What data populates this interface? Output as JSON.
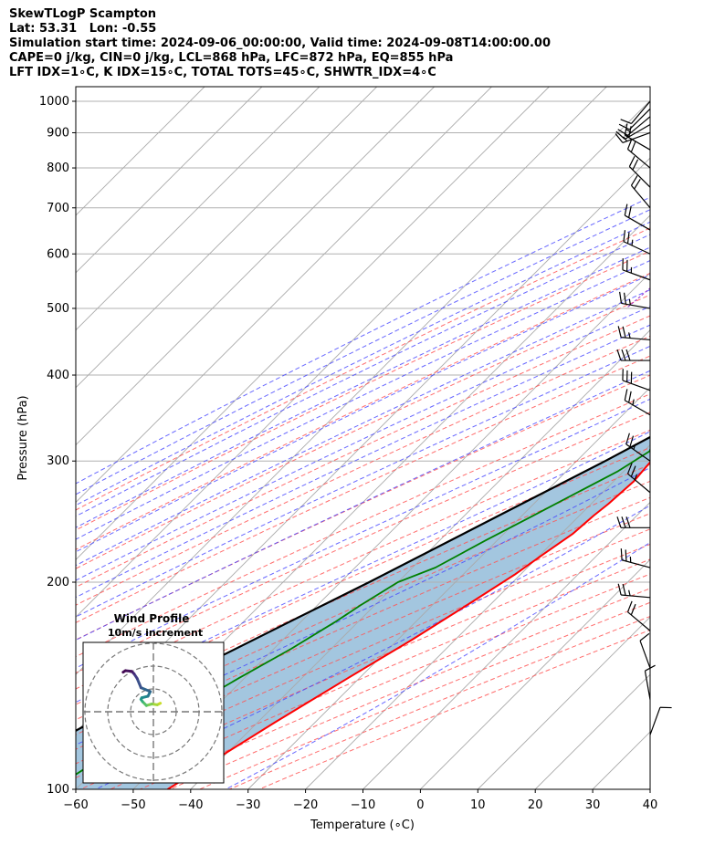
{
  "header": {
    "line1": "SkewTLogP Scampton",
    "line2": "Lat: 53.31   Lon: -0.55",
    "line3": "Simulation start time: 2024-09-06_00:00:00, Valid time: 2024-09-08T14:00:00.00",
    "line4": "CAPE=0 j/kg, CIN=0 j/kg, LCL=868 hPa, LFC=872 hPa, EQ=855 hPa",
    "line5": "LFT IDX=1∘C, K IDX=15∘C, TOTAL TOTS=45∘C, SHWTR_IDX=4∘C"
  },
  "chart_data": {
    "type": "line",
    "subtype": "skew-T log-P",
    "xlabel": "Temperature (∘C)",
    "ylabel": "Pressure (hPa)",
    "xlim": [
      -60,
      40
    ],
    "ylim": [
      1050,
      100
    ],
    "y_scale": "log",
    "xticks": [
      "−60",
      "−50",
      "−40",
      "−30",
      "−20",
      "−10",
      "0",
      "10",
      "20",
      "30",
      "40"
    ],
    "yticks": [
      "100",
      "200",
      "300",
      "400",
      "500",
      "600",
      "700",
      "800",
      "900",
      "1000"
    ],
    "grid": true,
    "colors": {
      "temperature": "#ff0000",
      "dewpoint": "#008000",
      "parcel": "#000000",
      "cape_fill": "#a3c6df",
      "dry_adiabat": "#ff5555",
      "moist_adiabat": "#4444ff",
      "mixing_ratio": "#9b30d0",
      "isotherm": "#aaaaaa"
    },
    "series": [
      {
        "key": "temperature",
        "points": [
          [
            1000,
            22
          ],
          [
            970,
            19.5
          ],
          [
            930,
            17
          ],
          [
            900,
            15.5
          ],
          [
            872,
            14.6
          ],
          [
            840,
            15.5
          ],
          [
            800,
            15.8
          ],
          [
            760,
            15
          ],
          [
            700,
            13
          ],
          [
            630,
            11.5
          ],
          [
            550,
            6
          ],
          [
            500,
            3
          ],
          [
            450,
            -1
          ],
          [
            400,
            -5.5
          ],
          [
            350,
            -11
          ],
          [
            300,
            -17
          ],
          [
            280,
            -16.5
          ],
          [
            260,
            -17
          ],
          [
            250,
            -17.5
          ],
          [
            235,
            -18
          ],
          [
            220,
            -19.5
          ],
          [
            205,
            -21
          ],
          [
            185,
            -24
          ],
          [
            165,
            -27.5
          ],
          [
            145,
            -32
          ],
          [
            125,
            -37
          ],
          [
            110,
            -41
          ],
          [
            100,
            -44
          ]
        ]
      },
      {
        "key": "dewpoint",
        "points": [
          [
            1000,
            13
          ],
          [
            950,
            14
          ],
          [
            900,
            13.5
          ],
          [
            860,
            12.5
          ],
          [
            840,
            10
          ],
          [
            800,
            5
          ],
          [
            760,
            1
          ],
          [
            700,
            -3.5
          ],
          [
            660,
            -6.5
          ],
          [
            640,
            -7.5
          ],
          [
            610,
            -8
          ],
          [
            560,
            -13.5
          ],
          [
            540,
            -16
          ],
          [
            515,
            -16.5
          ],
          [
            470,
            -10
          ],
          [
            440,
            -5.5
          ],
          [
            400,
            -8
          ],
          [
            370,
            -13
          ],
          [
            350,
            -18
          ],
          [
            330,
            -21
          ],
          [
            310,
            -19
          ],
          [
            290,
            -21
          ],
          [
            250,
            -28
          ],
          [
            230,
            -32
          ],
          [
            210,
            -36
          ],
          [
            200,
            -40
          ],
          [
            185,
            -42.5
          ],
          [
            175,
            -44
          ],
          [
            160,
            -47
          ],
          [
            145,
            -51
          ],
          [
            130,
            -55
          ],
          [
            115,
            -60
          ],
          [
            100,
            -64
          ]
        ]
      },
      {
        "key": "parcel",
        "points": [
          [
            1000,
            22
          ],
          [
            950,
            18
          ],
          [
            900,
            15.5
          ],
          [
            872,
            14.3
          ],
          [
            850,
            13.9
          ],
          [
            800,
            12.2
          ],
          [
            750,
            10.2
          ],
          [
            700,
            8
          ],
          [
            650,
            5.6
          ],
          [
            600,
            3
          ],
          [
            550,
            0
          ],
          [
            500,
            -3.5
          ],
          [
            450,
            -7.5
          ],
          [
            400,
            -12.2
          ],
          [
            350,
            -18
          ],
          [
            300,
            -25
          ],
          [
            250,
            -34
          ],
          [
            200,
            -45
          ],
          [
            175,
            -52
          ],
          [
            150,
            -60
          ],
          [
            125,
            -69
          ],
          [
            100,
            -79
          ]
        ]
      }
    ],
    "wind_barbs": [
      {
        "p": 1000,
        "ws": 10,
        "wd": 220
      },
      {
        "p": 975,
        "ws": 10,
        "wd": 225
      },
      {
        "p": 950,
        "ws": 15,
        "wd": 230
      },
      {
        "p": 925,
        "ws": 15,
        "wd": 240
      },
      {
        "p": 900,
        "ws": 15,
        "wd": 250
      },
      {
        "p": 850,
        "ws": 20,
        "wd": 300
      },
      {
        "p": 800,
        "ws": 20,
        "wd": 310
      },
      {
        "p": 750,
        "ws": 20,
        "wd": 315
      },
      {
        "p": 700,
        "ws": 20,
        "wd": 320
      },
      {
        "p": 650,
        "ws": 20,
        "wd": 300
      },
      {
        "p": 600,
        "ws": 25,
        "wd": 295
      },
      {
        "p": 550,
        "ws": 25,
        "wd": 290
      },
      {
        "p": 500,
        "ws": 25,
        "wd": 280
      },
      {
        "p": 450,
        "ws": 25,
        "wd": 275
      },
      {
        "p": 420,
        "ws": 30,
        "wd": 270
      },
      {
        "p": 380,
        "ws": 30,
        "wd": 290
      },
      {
        "p": 350,
        "ws": 25,
        "wd": 300
      },
      {
        "p": 300,
        "ws": 25,
        "wd": 305
      },
      {
        "p": 270,
        "ws": 25,
        "wd": 310
      },
      {
        "p": 240,
        "ws": 30,
        "wd": 270
      },
      {
        "p": 210,
        "ws": 25,
        "wd": 285
      },
      {
        "p": 190,
        "ws": 25,
        "wd": 275
      },
      {
        "p": 170,
        "ws": 20,
        "wd": 310
      },
      {
        "p": 150,
        "ws": 10,
        "wd": 340
      },
      {
        "p": 135,
        "ws": 10,
        "wd": 350
      },
      {
        "p": 120,
        "ws": 10,
        "wd": 20
      }
    ],
    "hodograph": {
      "title": "Wind Profile",
      "subtitle": "10m/s increment",
      "points": [
        [
          0.9,
          1.1
        ],
        [
          0.5,
          0.9
        ],
        [
          -0.2,
          1.0
        ],
        [
          -0.9,
          0.8
        ],
        [
          -1.4,
          1.3
        ],
        [
          -1.6,
          1.6
        ],
        [
          -1.5,
          1.8
        ],
        [
          -0.7,
          2.0
        ],
        [
          -0.4,
          2.6
        ],
        [
          -1.6,
          3.1
        ],
        [
          -2.1,
          4.3
        ],
        [
          -2.5,
          4.9
        ],
        [
          -2.8,
          5.2
        ],
        [
          -3.6,
          5.3
        ],
        [
          -3.9,
          5.1
        ]
      ]
    }
  }
}
